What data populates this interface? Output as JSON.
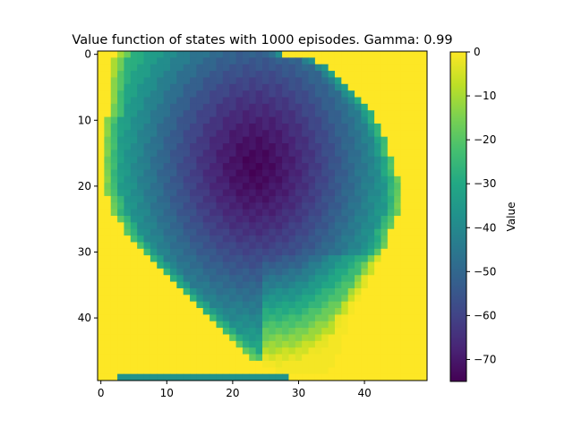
{
  "chart_data": {
    "type": "heatmap",
    "title": "Value function of states with 1000 episodes. Gamma: 0.99",
    "xlabel": "",
    "ylabel": "",
    "grid": false,
    "rows": 50,
    "cols": 50,
    "x_ticks": [
      0,
      10,
      20,
      30,
      40
    ],
    "y_ticks": [
      0,
      10,
      20,
      30,
      40
    ],
    "colormap": "viridis",
    "colorbar": {
      "label": "Value",
      "min": -75,
      "max": 0,
      "ticks": [
        0,
        -10,
        -20,
        -30,
        -40,
        -50,
        -60,
        -70
      ]
    },
    "field_model": {
      "description": "approximate value field: bowl with minimum near the centre, 0 outside the visited region",
      "min_center": [
        23.5,
        17
      ],
      "min_value": -74,
      "outside_value": 0
    },
    "bottom_strip": {
      "row": 49,
      "col_start": 3,
      "col_end": 28,
      "value": -37
    }
  }
}
